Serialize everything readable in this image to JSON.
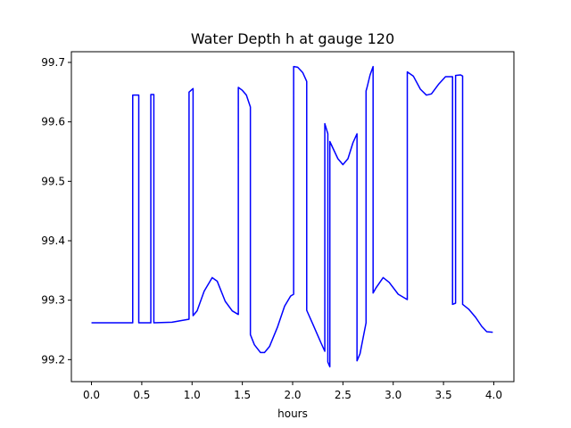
{
  "chart_data": {
    "type": "line",
    "title": "Water Depth h at gauge 120",
    "xlabel": "hours",
    "ylabel": "",
    "xlim": [
      -0.2,
      4.2
    ],
    "ylim": [
      99.163,
      99.718
    ],
    "xticks": [
      0.0,
      0.5,
      1.0,
      1.5,
      2.0,
      2.5,
      3.0,
      3.5,
      4.0
    ],
    "xtick_labels": [
      "0.0",
      "0.5",
      "1.0",
      "1.5",
      "2.0",
      "2.5",
      "3.0",
      "3.5",
      "4.0"
    ],
    "yticks": [
      99.2,
      99.3,
      99.4,
      99.5,
      99.6,
      99.7
    ],
    "ytick_labels": [
      "99.2",
      "99.3",
      "99.4",
      "99.5",
      "99.6",
      "99.7"
    ],
    "grid": false,
    "series": [
      {
        "name": "",
        "color": "#0000ff",
        "x": [
          0.0,
          0.2,
          0.41,
          0.41,
          0.47,
          0.47,
          0.59,
          0.59,
          0.62,
          0.62,
          0.8,
          0.97,
          0.97,
          1.01,
          1.01,
          1.05,
          1.12,
          1.2,
          1.25,
          1.33,
          1.4,
          1.46,
          1.46,
          1.5,
          1.54,
          1.58,
          1.58,
          1.62,
          1.68,
          1.72,
          1.77,
          1.85,
          1.92,
          1.98,
          2.01,
          2.01,
          2.05,
          2.1,
          2.14,
          2.14,
          2.2,
          2.28,
          2.32,
          2.32,
          2.35,
          2.35,
          2.37,
          2.37,
          2.4,
          2.45,
          2.5,
          2.55,
          2.6,
          2.64,
          2.64,
          2.67,
          2.73,
          2.73,
          2.74,
          2.77,
          2.8,
          2.8,
          2.83,
          2.9,
          2.96,
          3.05,
          3.14,
          3.14,
          3.2,
          3.27,
          3.33,
          3.38,
          3.45,
          3.52,
          3.59,
          3.59,
          3.62,
          3.62,
          3.67,
          3.69,
          3.69,
          3.75,
          3.82,
          3.88,
          3.93,
          3.99
        ],
        "y": [
          99.262,
          99.262,
          99.262,
          99.645,
          99.645,
          99.262,
          99.262,
          99.646,
          99.646,
          99.262,
          99.263,
          99.268,
          99.65,
          99.656,
          99.274,
          99.282,
          99.315,
          99.338,
          99.332,
          99.298,
          99.282,
          99.276,
          99.658,
          99.653,
          99.645,
          99.625,
          99.242,
          99.225,
          99.212,
          99.212,
          99.222,
          99.255,
          99.29,
          99.307,
          99.31,
          99.693,
          99.692,
          99.683,
          99.668,
          99.283,
          99.26,
          99.229,
          99.214,
          99.597,
          99.58,
          99.196,
          99.188,
          99.567,
          99.556,
          99.538,
          99.528,
          99.538,
          99.565,
          99.58,
          99.198,
          99.21,
          99.262,
          99.652,
          99.658,
          99.679,
          99.693,
          99.312,
          99.321,
          99.338,
          99.33,
          99.31,
          99.301,
          99.684,
          99.677,
          99.655,
          99.645,
          99.647,
          99.663,
          99.676,
          99.676,
          99.293,
          99.295,
          99.678,
          99.679,
          99.677,
          99.293,
          99.285,
          99.271,
          99.256,
          99.247,
          99.246
        ]
      }
    ]
  }
}
